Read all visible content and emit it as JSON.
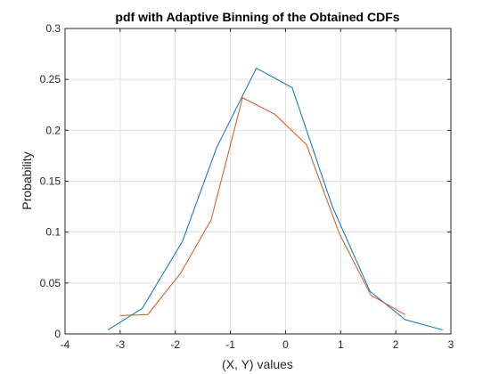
{
  "chart_data": {
    "type": "line",
    "title": "pdf with Adaptive Binning of the Obtained CDFs",
    "xlabel": "(X, Y) values",
    "ylabel": "Probability",
    "xlim": [
      -4,
      3
    ],
    "ylim": [
      0,
      0.3
    ],
    "xticks": [
      -4,
      -3,
      -2,
      -1,
      0,
      1,
      2,
      3
    ],
    "yticks": [
      0,
      0.05,
      0.1,
      0.15,
      0.2,
      0.25,
      0.3
    ],
    "xtick_labels": [
      "-4",
      "-3",
      "-2",
      "-1",
      "0",
      "1",
      "2",
      "3"
    ],
    "ytick_labels": [
      "0",
      "0.05",
      "0.1",
      "0.15",
      "0.2",
      "0.25",
      "0.3"
    ],
    "grid": true,
    "box": true,
    "series": [
      {
        "color": "#0072BD",
        "x": [
          -3.22,
          -2.6,
          -1.87,
          -1.25,
          -0.53,
          0.12,
          0.85,
          1.53,
          2.17,
          2.85
        ],
        "y": [
          0.004,
          0.025,
          0.091,
          0.183,
          0.261,
          0.242,
          0.125,
          0.042,
          0.014,
          0.004
        ]
      },
      {
        "color": "#D95319",
        "x": [
          -3.0,
          -2.5,
          -1.9,
          -1.35,
          -0.78,
          -0.2,
          0.38,
          0.98,
          1.55,
          2.17
        ],
        "y": [
          0.018,
          0.019,
          0.06,
          0.112,
          0.232,
          0.216,
          0.186,
          0.098,
          0.038,
          0.019
        ]
      }
    ]
  }
}
